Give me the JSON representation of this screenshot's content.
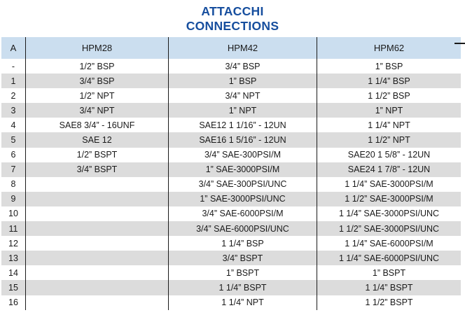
{
  "title": {
    "line1": "ATTACCHI",
    "line2": "CONNECTIONS"
  },
  "table": {
    "headers": [
      "A",
      "HPM28",
      "HPM42",
      "HPM62"
    ],
    "rows": [
      {
        "a": "-",
        "hpm28": "1/2” BSP",
        "hpm42": "3/4” BSP",
        "hpm62": "1” BSP"
      },
      {
        "a": "1",
        "hpm28": "3/4” BSP",
        "hpm42": "1” BSP",
        "hpm62": "1 1/4” BSP"
      },
      {
        "a": "2",
        "hpm28": "1/2” NPT",
        "hpm42": "3/4” NPT",
        "hpm62": "1 1/2” BSP"
      },
      {
        "a": "3",
        "hpm28": "3/4” NPT",
        "hpm42": "1” NPT",
        "hpm62": "1” NPT"
      },
      {
        "a": "4",
        "hpm28": "SAE8 3/4” - 16UNF",
        "hpm42": "SAE12 1 1/16” - 12UN",
        "hpm62": "1 1/4” NPT"
      },
      {
        "a": "5",
        "hpm28": "SAE 12",
        "hpm42": "SAE16 1 5/16” - 12UN",
        "hpm62": "1 1/2” NPT"
      },
      {
        "a": "6",
        "hpm28": "1/2” BSPT",
        "hpm42": "3/4” SAE-300PSI/M",
        "hpm62": "SAE20 1 5/8” - 12UN"
      },
      {
        "a": "7",
        "hpm28": "3/4” BSPT",
        "hpm42": "1” SAE-3000PSI/M",
        "hpm62": "SAE24 1 7/8” - 12UN"
      },
      {
        "a": "8",
        "hpm28": "",
        "hpm42": "3/4” SAE-300PSI/UNC",
        "hpm62": "1 1/4” SAE-3000PSI/M"
      },
      {
        "a": "9",
        "hpm28": "",
        "hpm42": "1” SAE-3000PSI/UNC",
        "hpm62": "1 1/2” SAE-3000PSI/M"
      },
      {
        "a": "10",
        "hpm28": "",
        "hpm42": "3/4” SAE-6000PSI/M",
        "hpm62": "1 1/4” SAE-3000PSI/UNC"
      },
      {
        "a": "11",
        "hpm28": "",
        "hpm42": "3/4” SAE-6000PSI/UNC",
        "hpm62": "1 1/2” SAE-3000PSI/UNC"
      },
      {
        "a": "12",
        "hpm28": "",
        "hpm42": "1 1/4” BSP",
        "hpm62": "1 1/4” SAE-6000PSI/M"
      },
      {
        "a": "13",
        "hpm28": "",
        "hpm42": "3/4” BSPT",
        "hpm62": "1 1/4” SAE-6000PSI/UNC"
      },
      {
        "a": "14",
        "hpm28": "",
        "hpm42": "1” BSPT",
        "hpm62": "1” BSPT"
      },
      {
        "a": "15",
        "hpm28": "",
        "hpm42": "1 1/4” BSPT",
        "hpm62": "1 1/4” BSPT"
      },
      {
        "a": "16",
        "hpm28": "",
        "hpm42": "1 1/4” NPT",
        "hpm62": "1 1/2” BSPT"
      }
    ]
  },
  "colors": {
    "title_text": "#164e9e",
    "header_bg": "#cbdeef",
    "row_alt_bg": "#dcdcdc",
    "grid_line": "#1a1a1a",
    "cell_text": "#1a1a1a"
  }
}
